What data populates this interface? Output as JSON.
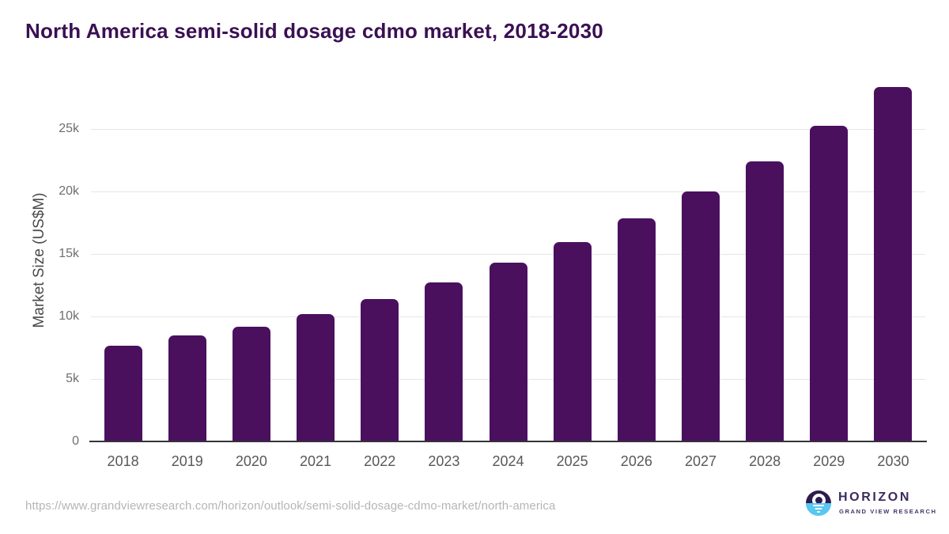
{
  "header": {
    "title": "North America semi-solid dosage cdmo market, 2018-2030"
  },
  "chart_data": {
    "type": "bar",
    "title": "North America semi-solid dosage cdmo market, 2018-2030",
    "xlabel": "",
    "ylabel": "Market Size (US$M)",
    "categories": [
      "2018",
      "2019",
      "2020",
      "2021",
      "2022",
      "2023",
      "2024",
      "2025",
      "2026",
      "2027",
      "2028",
      "2029",
      "2030"
    ],
    "values": [
      7650,
      8500,
      9200,
      10200,
      11400,
      12700,
      14280,
      15970,
      17880,
      20040,
      22430,
      25290,
      28360
    ],
    "ylim": [
      0,
      29000
    ],
    "y_ticks": [
      {
        "value": 0,
        "label": "0"
      },
      {
        "value": 5000,
        "label": "5k"
      },
      {
        "value": 10000,
        "label": "10k"
      },
      {
        "value": 15000,
        "label": "15k"
      },
      {
        "value": 20000,
        "label": "20k"
      },
      {
        "value": 25000,
        "label": "25k"
      }
    ],
    "grid": true,
    "legend": false,
    "bar_color": "#4a105e"
  },
  "footer": {
    "source_url": "https://www.grandviewresearch.com/horizon/outlook/semi-solid-dosage-cdmo-market/north-america",
    "logo": {
      "brand": "HORIZON",
      "sub_brand": "GRAND VIEW RESEARCH"
    }
  },
  "colors": {
    "title_text": "#3b1053",
    "bar_fill": "#4a105e",
    "gridline": "#e6e6e9",
    "axis_line": "#35323a",
    "tick_text": "#6e6e6e",
    "logo_purple": "#2f1c4e",
    "logo_blue": "#58c7f2"
  }
}
